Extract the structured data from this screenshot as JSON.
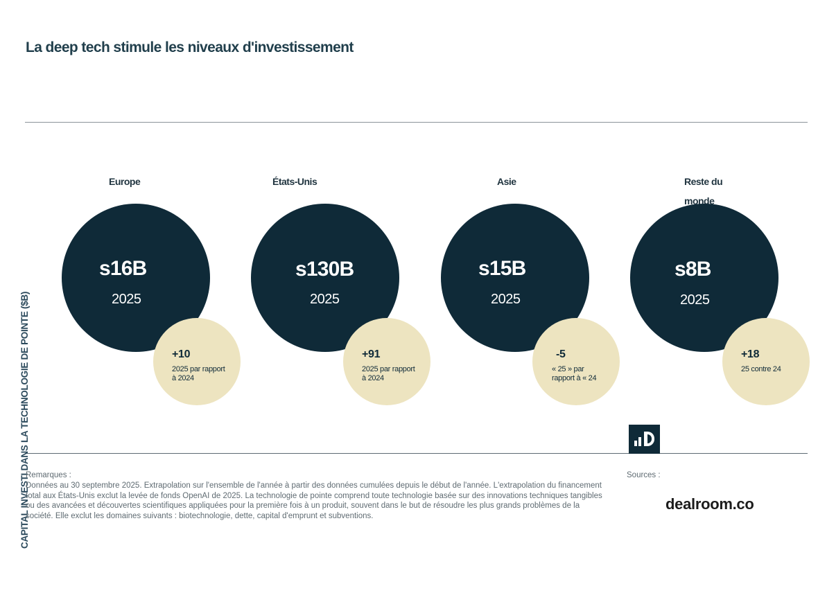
{
  "page": {
    "title": "La deep tech stimule les niveaux d'investissement",
    "y_label": "CAPITAL INVESTI DANS LA TECHNOLOGIE DE POINTE ($B)",
    "notes_label": "Remarques :",
    "notes_text": "Données au 30 septembre 2025. Extrapolation sur l'ensemble de l'année à partir des données cumulées depuis le début de l'année. L'extrapolation du financement total aux États-Unis exclut la levée de fonds OpenAI de 2025. La technologie de pointe comprend toute technologie basée sur des innovations techniques tangibles ou des avancées et découvertes scientifiques appliquées pour la première fois à un produit, souvent dans le but de résoudre les plus grands problèmes de la société. Elle exclut les domaines suivants : biotechnologie, dette, capital d'emprunt et subventions.",
    "sources_label": "Sources :",
    "brand": "dealroom.co"
  },
  "colors": {
    "navy": "#0f2a38",
    "cream": "#ede4c0"
  },
  "icons": {
    "logo": "dealroom-logo-icon"
  },
  "chart_data": {
    "type": "bubble",
    "title": "La deep tech stimule les niveaux d'investissement",
    "ylabel": "CAPITAL INVESTI DANS LA TECHNOLOGIE DE POINTE ($B)",
    "categories": [
      "Europe",
      "États-Unis",
      "Asie",
      "Reste du monde"
    ],
    "series": [
      {
        "values": [
          16,
          130,
          15,
          8
        ]
      },
      {
        "values": [
          10,
          91,
          -5,
          18
        ]
      }
    ],
    "items": [
      {
        "region": "Europe",
        "value_label": "s16B",
        "year": "2025",
        "change_label": "+10",
        "change_note": "2025 par rapport à 2024"
      },
      {
        "region": "États-Unis",
        "value_label": "s130B",
        "year": "2025",
        "change_label": "+91",
        "change_note": "2025 par rapport à 2024"
      },
      {
        "region": "Asie",
        "value_label": "s15B",
        "year": "2025",
        "change_label": "-5",
        "change_note": "« 25 » par rapport à « 24"
      },
      {
        "region": "Reste du monde",
        "value_label": "s8B",
        "year": "2025",
        "change_label": "+18",
        "change_note": "25 contre 24"
      }
    ]
  }
}
